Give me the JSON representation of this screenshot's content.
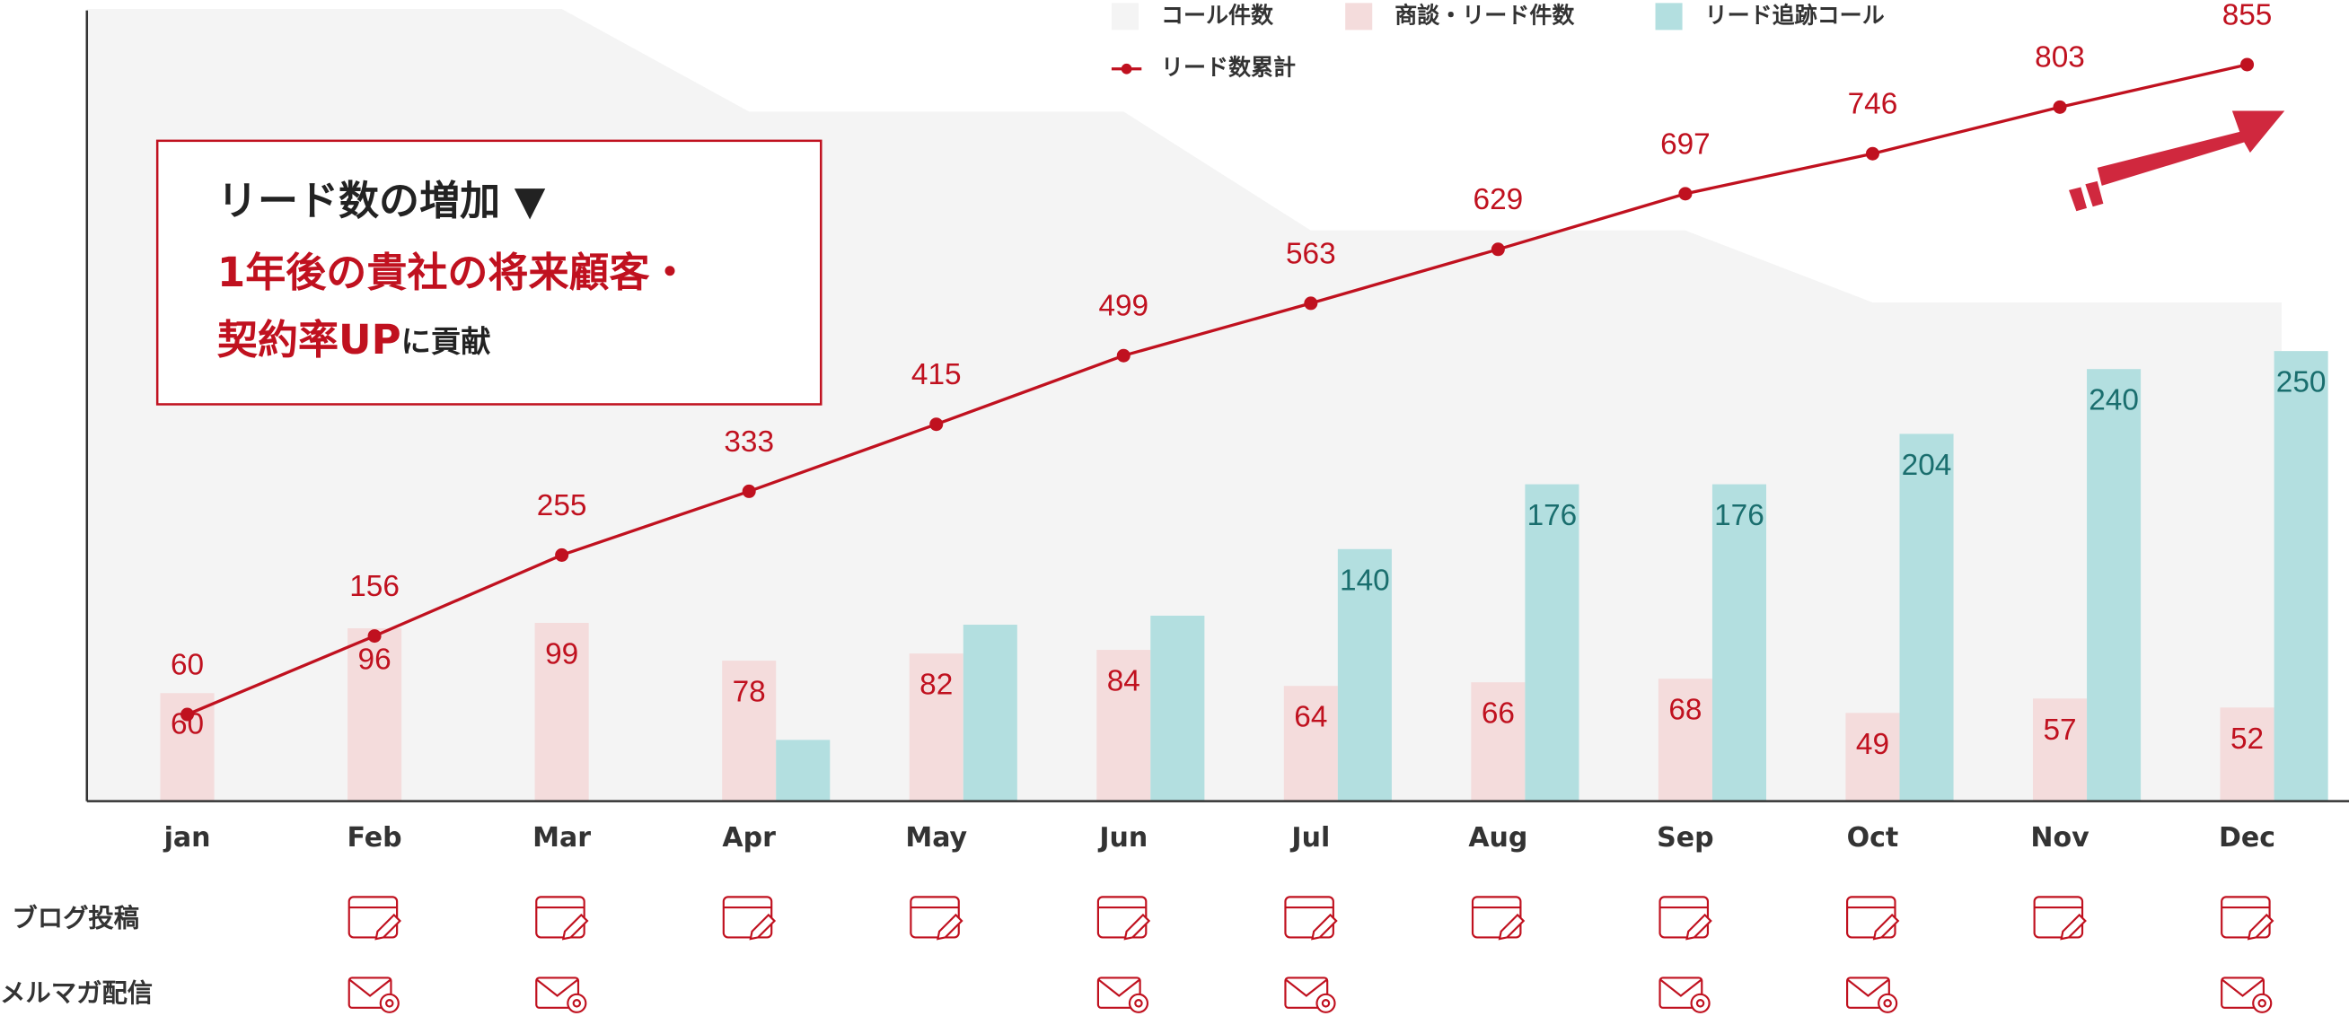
{
  "chart_data": {
    "type": "combo",
    "categories": [
      "jan",
      "Feb",
      "Mar",
      "Apr",
      "May",
      "Jun",
      "Jul",
      "Aug",
      "Sep",
      "Oct",
      "Nov",
      "Dec"
    ],
    "ylim": [
      0,
      445
    ],
    "y2lim": [
      -46,
      934
    ],
    "series": [
      {
        "name": "コール件数",
        "kind": "area",
        "color": "#f4f4f4",
        "show_labels": false,
        "values": [
          440,
          440,
          440,
          383,
          383,
          383,
          317,
          317,
          317,
          277,
          277,
          277
        ]
      },
      {
        "name": "商談・リード件数",
        "kind": "bar",
        "color": "#f4dcdc",
        "label_color": "#c0111f",
        "values": [
          60,
          96,
          99,
          78,
          82,
          84,
          64,
          66,
          68,
          49,
          57,
          52
        ]
      },
      {
        "name": "リード追跡コール",
        "kind": "bar",
        "color": "#b3dfe0",
        "label_color": "#1a6e6e",
        "values": [
          null,
          null,
          null,
          34,
          98,
          103,
          140,
          176,
          176,
          204,
          240,
          250
        ],
        "value_labels": [
          null,
          null,
          null,
          null,
          null,
          null,
          "140",
          "176",
          "176",
          "204",
          "240",
          "250"
        ]
      },
      {
        "name": "リード数累計",
        "kind": "line",
        "axis": "y2",
        "color": "#c0111f",
        "label_color": "#c0111f",
        "values": [
          60,
          156,
          255,
          333,
          415,
          499,
          563,
          629,
          697,
          746,
          803,
          855
        ]
      }
    ],
    "annotation": {
      "lines": [
        [
          {
            "text": "リード数の増加 ▼",
            "color": "#222222"
          }
        ],
        [
          {
            "text": "1年後の貴社の将来顧客・",
            "color": "#c0111f"
          }
        ],
        [
          {
            "text": "契約率UP",
            "color": "#c0111f"
          },
          {
            "text": "に貢献",
            "color": "#222222",
            "small": true
          }
        ]
      ]
    },
    "schedule": [
      {
        "label": "ブログ投稿",
        "icon": "blog",
        "active": [
          false,
          true,
          true,
          true,
          true,
          true,
          true,
          true,
          true,
          true,
          true,
          true
        ]
      },
      {
        "label": "メルマガ配信",
        "icon": "mail",
        "active": [
          false,
          true,
          true,
          false,
          false,
          true,
          true,
          false,
          true,
          true,
          false,
          true
        ]
      }
    ]
  }
}
